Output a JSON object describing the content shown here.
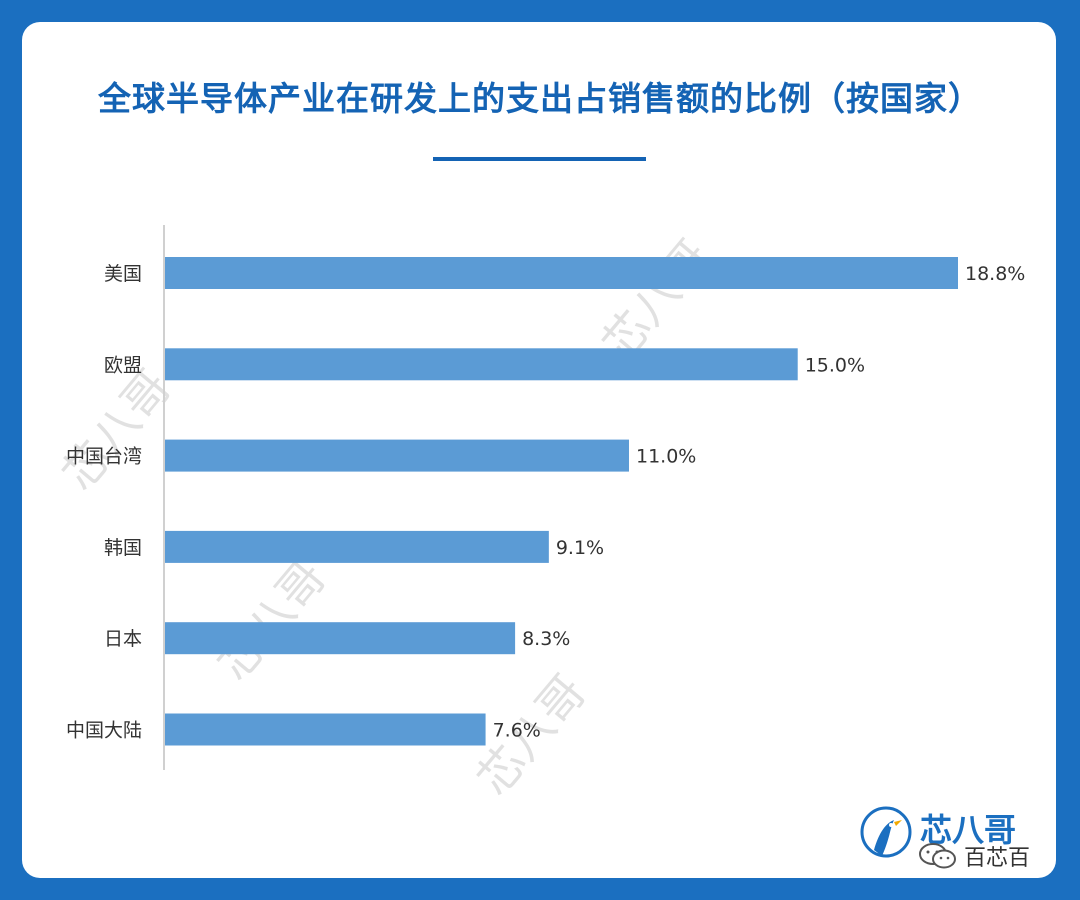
{
  "chart_data": {
    "type": "bar",
    "orientation": "horizontal",
    "title": "全球半导体产业在研发上的支出占销售额的比例（按国家）",
    "categories": [
      "美国",
      "欧盟",
      "中国台湾",
      "韩国",
      "日本",
      "中国大陆"
    ],
    "values": [
      18.8,
      15.0,
      11.0,
      9.1,
      8.3,
      7.6
    ],
    "data_labels": [
      "18.8%",
      "15.0%",
      "11.0%",
      "9.1%",
      "8.3%",
      "7.6%"
    ],
    "unit": "%",
    "xlim": [
      0,
      18.8
    ],
    "grid": false,
    "bar_color": "#5b9bd5"
  },
  "colors": {
    "background": "#1b6fc0",
    "title": "#1463b4",
    "bar": "#5b9bd5"
  },
  "branding": {
    "logo_text": "芯八哥",
    "logo_icon": "bird-logo-icon",
    "wechat_account": "百芯百",
    "wechat_icon": "wechat-icon",
    "watermark_text": "芯八哥"
  }
}
